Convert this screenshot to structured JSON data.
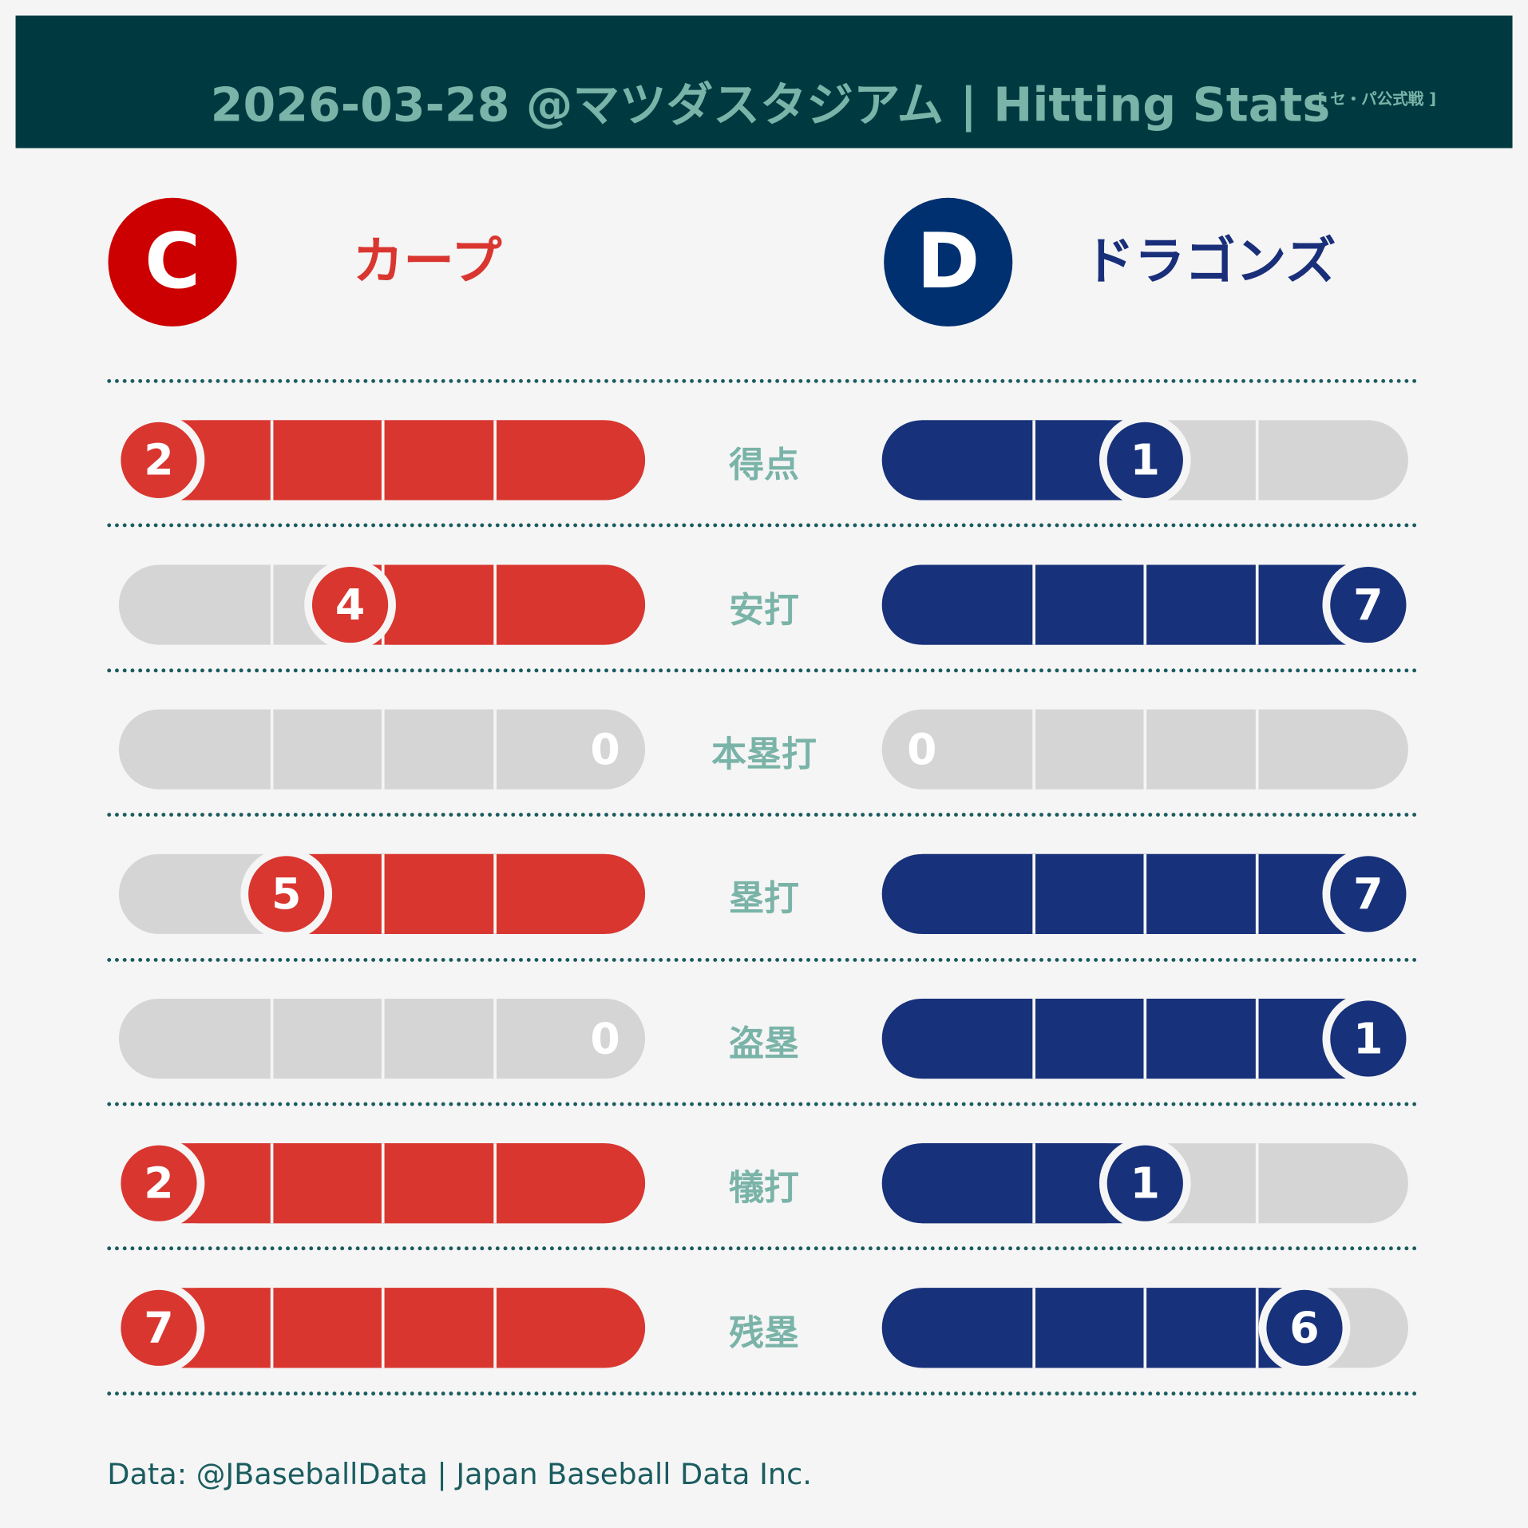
{
  "header": {
    "title": "2026-03-28  @マツダスタジアム | Hitting Stats",
    "subtitle": "[ セ・パ公式戦 ]"
  },
  "colors": {
    "header_bg": "#003a40",
    "header_text": "#7ab3a8",
    "home": "#d93630",
    "away": "#17317a",
    "empty": "#d5d5d5",
    "divider": "#1a5c60"
  },
  "teams": {
    "home": {
      "logo_letter": "C",
      "name": "カープ",
      "logo_color": "#cc0000",
      "name_color": "#d93630"
    },
    "away": {
      "logo_letter": "D",
      "name": "ドラゴンズ",
      "logo_color": "#003070",
      "name_color": "#1a2f7a"
    }
  },
  "chart_data": {
    "type": "bar",
    "categories": [
      "得点",
      "安打",
      "本塁打",
      "塁打",
      "盗塁",
      "犠打",
      "残塁"
    ],
    "series": [
      {
        "name": "カープ",
        "values": [
          2,
          4,
          0,
          5,
          0,
          2,
          7
        ]
      },
      {
        "name": "ドラゴンズ",
        "values": [
          1,
          7,
          0,
          7,
          1,
          1,
          6
        ]
      }
    ]
  },
  "footer": "Data: @JBaseballData | Japan Baseball Data Inc."
}
